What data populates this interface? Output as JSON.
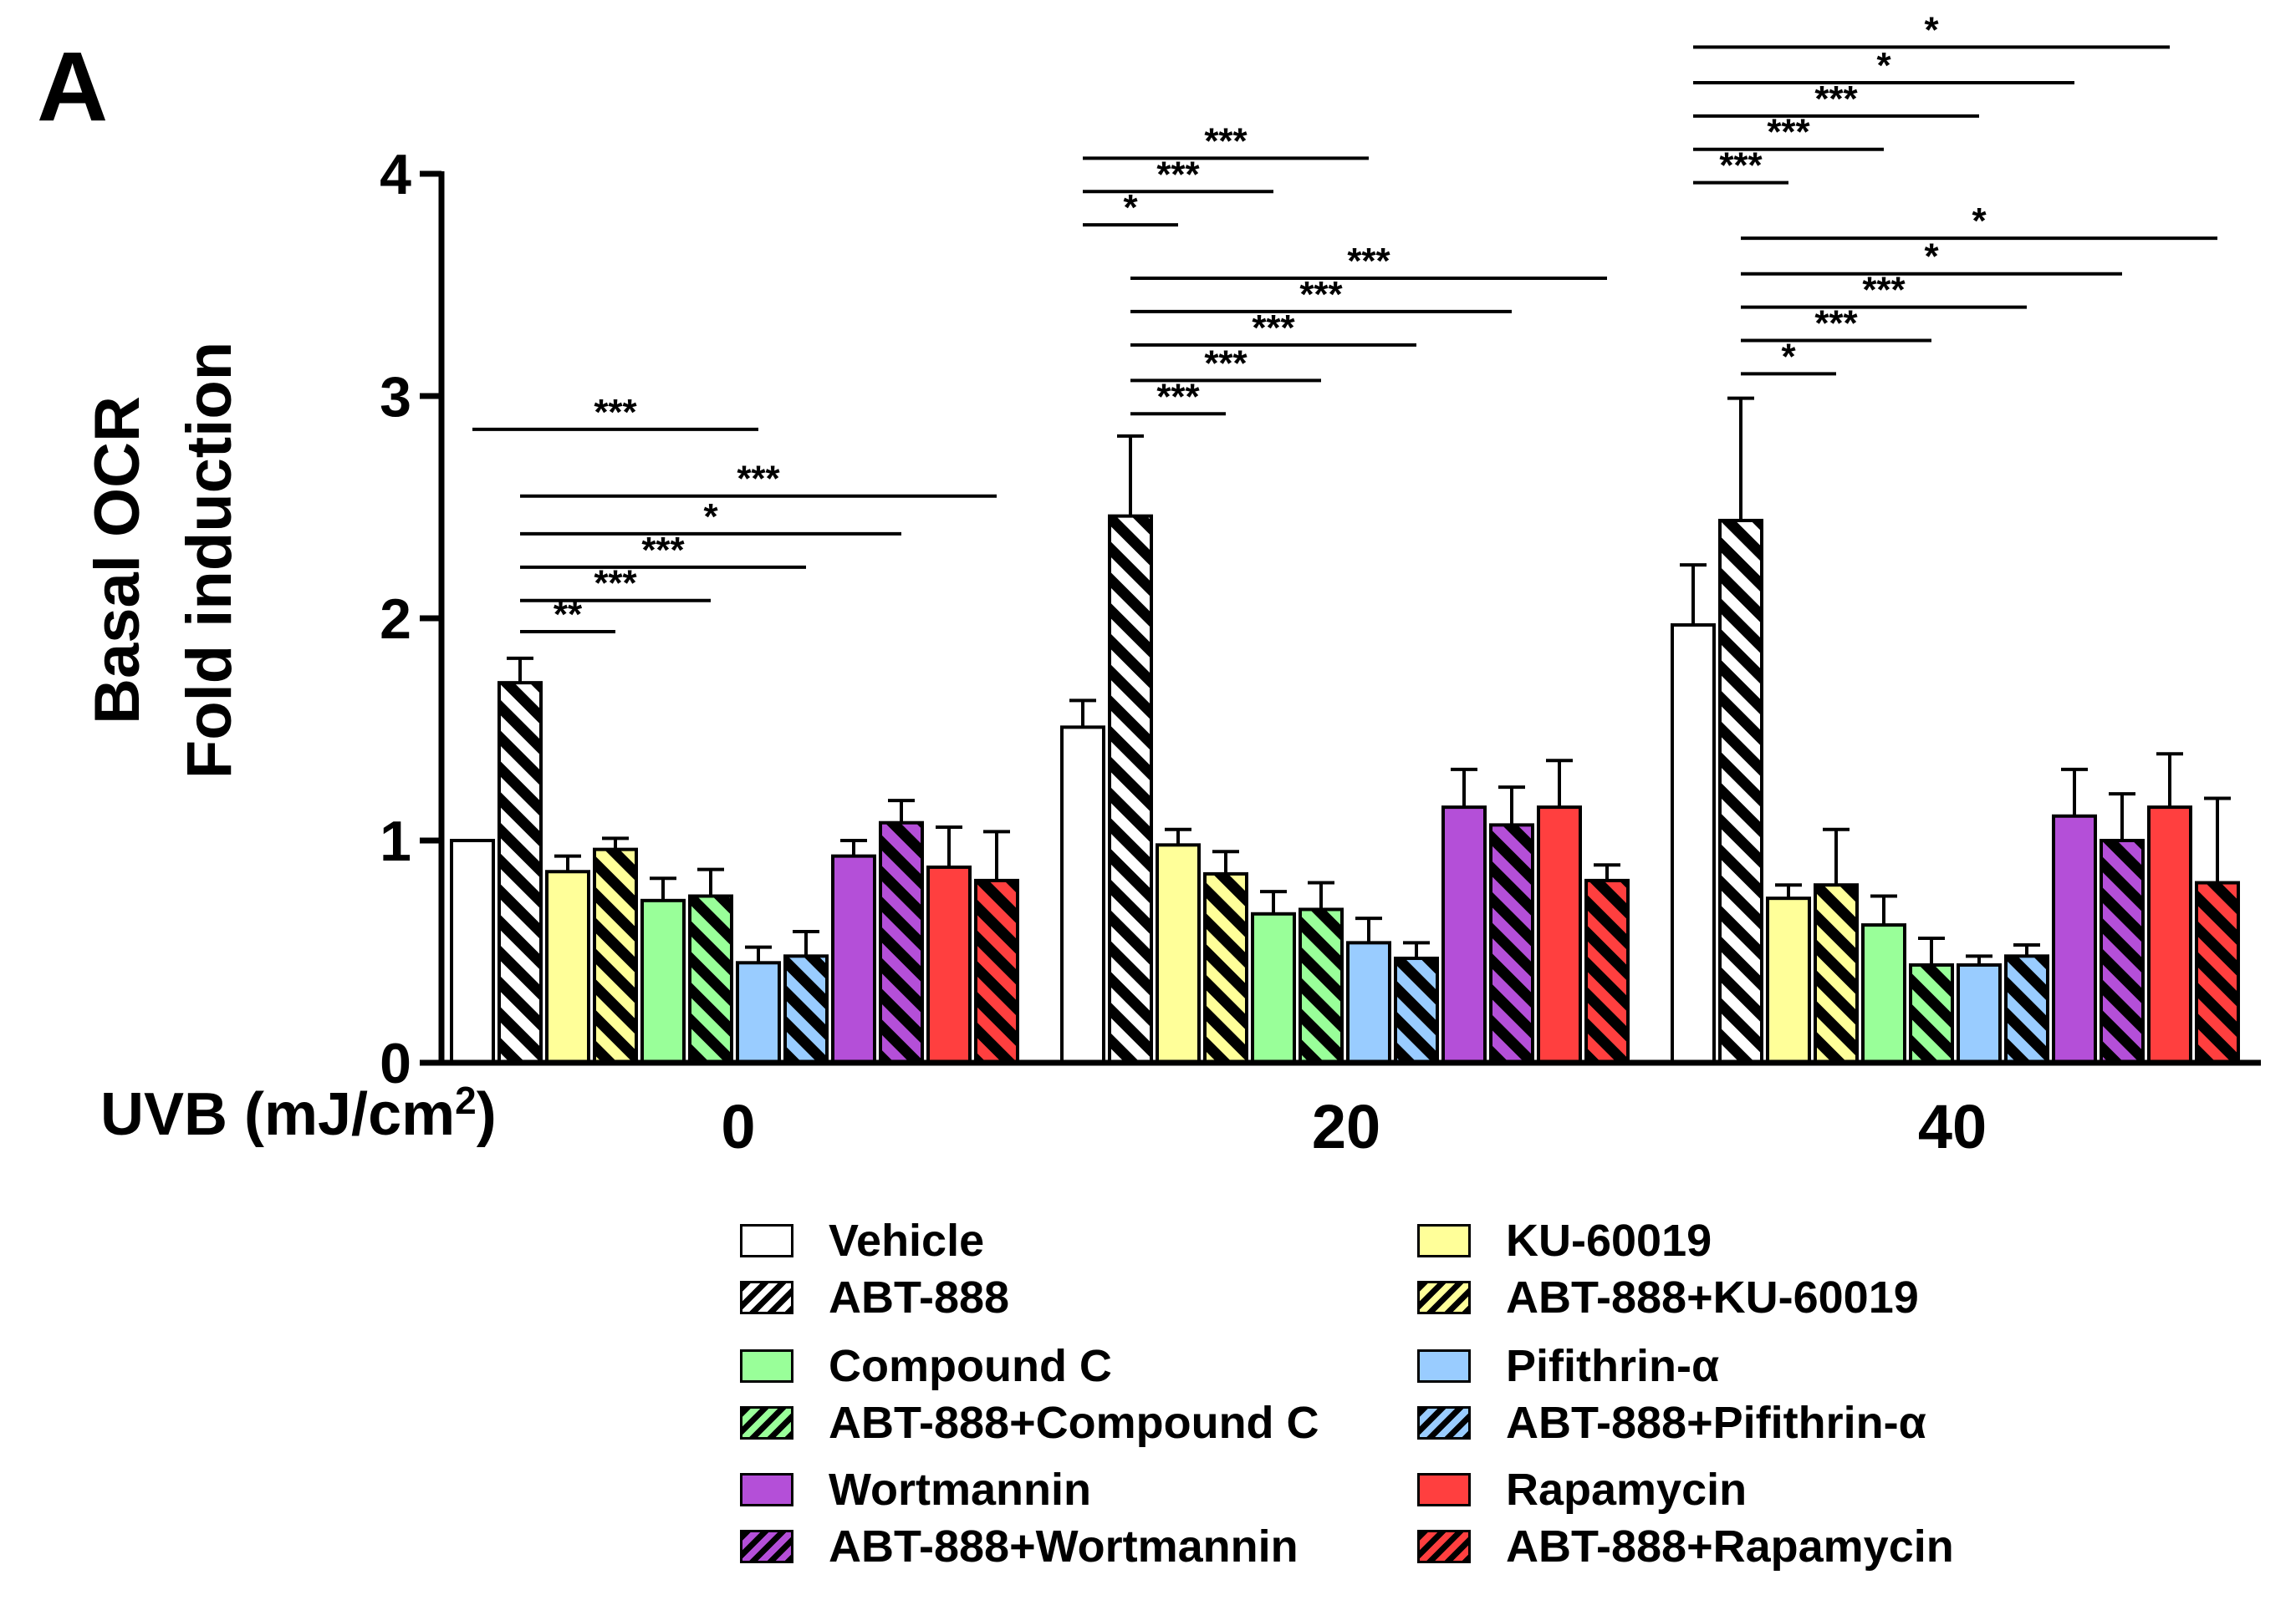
{
  "panel_label": "A",
  "chart_data": {
    "type": "bar",
    "ylabel_line1": "Basal OCR",
    "ylabel_line2": "Fold induction",
    "xlabel": "UVB (mJ/cm",
    "xlabel_sup": "2",
    "xlabel_end": ")",
    "categories": [
      "0",
      "20",
      "40"
    ],
    "ylim": [
      0,
      4
    ],
    "yticks": [
      "0",
      "1",
      "2",
      "3",
      "4"
    ],
    "colors": {
      "white": "#ffffff",
      "yellow": "#ffff99",
      "green": "#99ff99",
      "blue": "#99ccff",
      "purple": "#b44fd8",
      "red": "#ff3f3f"
    },
    "series": [
      {
        "name": "Vehicle",
        "color": "white",
        "hatch": false,
        "values": [
          1.0,
          1.51,
          1.97
        ],
        "errors": [
          0,
          0.12,
          0.27
        ]
      },
      {
        "name": "ABT-888",
        "color": "white",
        "hatch": true,
        "values": [
          1.71,
          2.46,
          2.44
        ],
        "errors": [
          0.11,
          0.36,
          0.55
        ]
      },
      {
        "name": "KU-60019",
        "color": "yellow",
        "hatch": false,
        "values": [
          0.86,
          0.98,
          0.74
        ],
        "errors": [
          0.07,
          0.07,
          0.06
        ]
      },
      {
        "name": "ABT-888+KU-60019",
        "color": "yellow",
        "hatch": true,
        "values": [
          0.96,
          0.85,
          0.8
        ],
        "errors": [
          0.05,
          0.1,
          0.25
        ]
      },
      {
        "name": "Compound C",
        "color": "green",
        "hatch": false,
        "values": [
          0.73,
          0.67,
          0.62
        ],
        "errors": [
          0.1,
          0.1,
          0.13
        ]
      },
      {
        "name": "ABT-888+Compound C",
        "color": "green",
        "hatch": true,
        "values": [
          0.75,
          0.69,
          0.44
        ],
        "errors": [
          0.12,
          0.12,
          0.12
        ]
      },
      {
        "name": "Pifithrin-α",
        "color": "blue",
        "hatch": false,
        "values": [
          0.45,
          0.54,
          0.44
        ],
        "errors": [
          0.07,
          0.11,
          0.04
        ]
      },
      {
        "name": "ABT-888+Pifithrin-α",
        "color": "blue",
        "hatch": true,
        "values": [
          0.48,
          0.47,
          0.48
        ],
        "errors": [
          0.11,
          0.07,
          0.05
        ]
      },
      {
        "name": "Wortmannin",
        "color": "purple",
        "hatch": false,
        "values": [
          0.93,
          1.15,
          1.11
        ],
        "errors": [
          0.07,
          0.17,
          0.21
        ]
      },
      {
        "name": "ABT-888+Wortmannin",
        "color": "purple",
        "hatch": true,
        "values": [
          1.08,
          1.07,
          1.0
        ],
        "errors": [
          0.1,
          0.17,
          0.21
        ]
      },
      {
        "name": "Rapamycin",
        "color": "red",
        "hatch": false,
        "values": [
          0.88,
          1.15,
          1.15
        ],
        "errors": [
          0.18,
          0.21,
          0.24
        ]
      },
      {
        "name": "ABT-888+Rapamycin",
        "color": "red",
        "hatch": true,
        "values": [
          0.82,
          0.82,
          0.81
        ],
        "errors": [
          0.22,
          0.07,
          0.38
        ]
      }
    ],
    "significance": [
      {
        "group": 0,
        "from": 0,
        "to": 6,
        "level": 2.85,
        "label": "***"
      },
      {
        "group": 0,
        "from": 1,
        "to": 11,
        "level": 2.55,
        "label": "***"
      },
      {
        "group": 0,
        "from": 1,
        "to": 9,
        "level": 2.38,
        "label": "*"
      },
      {
        "group": 0,
        "from": 1,
        "to": 7,
        "level": 2.23,
        "label": "***"
      },
      {
        "group": 0,
        "from": 1,
        "to": 5,
        "level": 2.08,
        "label": "***"
      },
      {
        "group": 0,
        "from": 1,
        "to": 3,
        "level": 1.94,
        "label": "**"
      },
      {
        "group": 1,
        "from": 0,
        "to": 6,
        "level": 4.07,
        "label": "***"
      },
      {
        "group": 1,
        "from": 0,
        "to": 4,
        "level": 3.92,
        "label": "***"
      },
      {
        "group": 1,
        "from": 0,
        "to": 2,
        "level": 3.77,
        "label": "*"
      },
      {
        "group": 1,
        "from": 1,
        "to": 11,
        "level": 3.53,
        "label": "***"
      },
      {
        "group": 1,
        "from": 1,
        "to": 9,
        "level": 3.38,
        "label": "***"
      },
      {
        "group": 1,
        "from": 1,
        "to": 7,
        "level": 3.23,
        "label": "***"
      },
      {
        "group": 1,
        "from": 1,
        "to": 5,
        "level": 3.07,
        "label": "***"
      },
      {
        "group": 1,
        "from": 1,
        "to": 3,
        "level": 2.92,
        "label": "***"
      },
      {
        "group": 2,
        "from": 0,
        "to": 10,
        "level": 4.57,
        "label": "*"
      },
      {
        "group": 2,
        "from": 0,
        "to": 8,
        "level": 4.41,
        "label": "*"
      },
      {
        "group": 2,
        "from": 0,
        "to": 6,
        "level": 4.26,
        "label": "***"
      },
      {
        "group": 2,
        "from": 0,
        "to": 4,
        "level": 4.11,
        "label": "***"
      },
      {
        "group": 2,
        "from": 0,
        "to": 2,
        "level": 3.96,
        "label": "***"
      },
      {
        "group": 2,
        "from": 1,
        "to": 11,
        "level": 3.71,
        "label": "*"
      },
      {
        "group": 2,
        "from": 1,
        "to": 9,
        "level": 3.55,
        "label": "*"
      },
      {
        "group": 2,
        "from": 1,
        "to": 7,
        "level": 3.4,
        "label": "***"
      },
      {
        "group": 2,
        "from": 1,
        "to": 5,
        "level": 3.25,
        "label": "***"
      },
      {
        "group": 2,
        "from": 1,
        "to": 3,
        "level": 3.1,
        "label": "*"
      }
    ],
    "legend_placement": "bottom"
  }
}
